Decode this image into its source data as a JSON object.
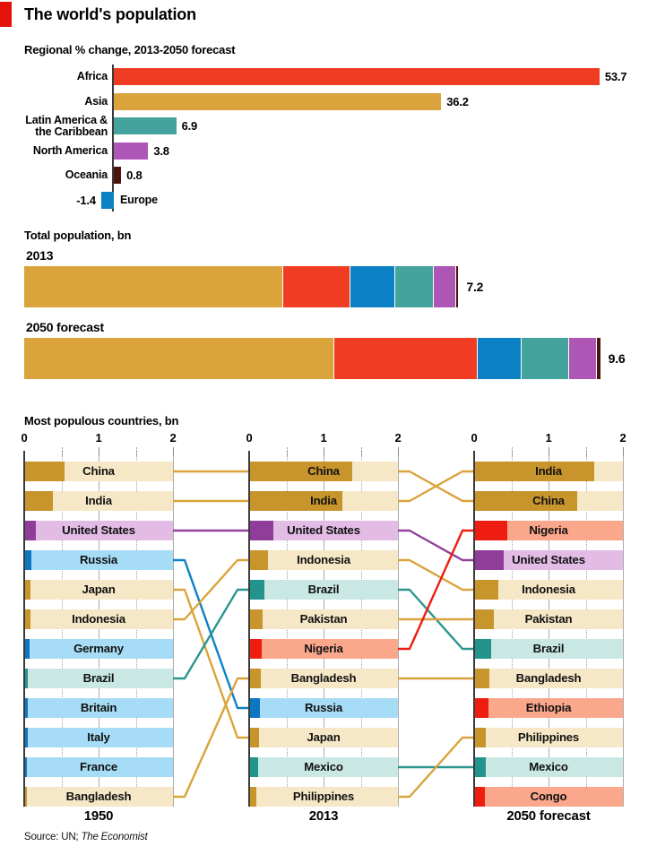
{
  "header": {
    "title": "The world's population"
  },
  "footer": {
    "source_prefix": "Source: UN; ",
    "source_publication": "The Economist"
  },
  "palette": {
    "brand_red": "#E3120B",
    "africa": "#F03C22",
    "asia": "#DBA33C",
    "europe": "#0C80C4",
    "latin_america": "#44A39C",
    "north_america": "#AE56B6",
    "oceania": "#4C120D",
    "asia_dark": "#C8942C",
    "asia_light": "#F6E8C6",
    "africa_dark": "#EE1D0F",
    "africa_light": "#FBA78C",
    "europe_dark": "#0E76C0",
    "europe_light": "#A6DCF5",
    "latin_america_dark": "#23948D",
    "latin_america_light": "#C9E8E3",
    "north_america_dark": "#8F3D99",
    "north_america_light": "#E3BCE6",
    "links": {
      "asia": "#D9A43C",
      "africa": "#EE1D0F",
      "europe": "#0C82C6",
      "latin_america": "#2A968F",
      "north_america": "#93409B"
    },
    "axis": "#3B3B3B",
    "grid": "#ACACAC",
    "grid_dotted": "#A0A0A0"
  },
  "chart_data": [
    {
      "id": "regional_change",
      "type": "bar",
      "orientation": "horizontal",
      "title": "Regional % change, 2013-2050 forecast",
      "categories": [
        "Africa",
        "Asia",
        "Latin America & the Caribbean",
        "North America",
        "Oceania",
        "Europe"
      ],
      "values": [
        53.7,
        36.2,
        6.9,
        3.8,
        0.8,
        -1.4
      ],
      "value_labels": [
        "53.7",
        "36.2",
        "6.9",
        "3.8",
        "0.8",
        "-1.4"
      ],
      "region_keys": [
        "africa",
        "asia",
        "latin_america",
        "north_america",
        "oceania",
        "europe"
      ],
      "xlim": [
        -1.4,
        53.7
      ],
      "grid": false,
      "legend": false
    },
    {
      "id": "total_population",
      "type": "bar",
      "subtype": "stacked",
      "title": "Total population, bn",
      "xmax": 9.6,
      "bars": [
        {
          "label": "2013",
          "total_label": "7.2",
          "total": 7.2,
          "segments": [
            {
              "region": "asia",
              "value": 4.31
            },
            {
              "region": "africa",
              "value": 1.11
            },
            {
              "region": "europe",
              "value": 0.74
            },
            {
              "region": "latin_america",
              "value": 0.62
            },
            {
              "region": "north_america",
              "value": 0.36
            },
            {
              "region": "oceania",
              "value": 0.04
            }
          ]
        },
        {
          "label": "2050 forecast",
          "total_label": "9.6",
          "total": 9.6,
          "segments": [
            {
              "region": "asia",
              "value": 5.16
            },
            {
              "region": "africa",
              "value": 2.39
            },
            {
              "region": "europe",
              "value": 0.71
            },
            {
              "region": "latin_america",
              "value": 0.78
            },
            {
              "region": "north_america",
              "value": 0.45
            },
            {
              "region": "oceania",
              "value": 0.06
            }
          ]
        }
      ]
    },
    {
      "id": "most_populous",
      "type": "bar",
      "subtype": "ranked-slope",
      "title": "Most populous countries, bn",
      "axis_ticks": [
        "0",
        "1",
        "2"
      ],
      "axis_range": [
        0,
        2
      ],
      "columns": [
        {
          "label": "1950",
          "rows": [
            {
              "country": "China",
              "value": 0.54,
              "region": "asia"
            },
            {
              "country": "India",
              "value": 0.38,
              "region": "asia"
            },
            {
              "country": "United States",
              "value": 0.16,
              "region": "north_america"
            },
            {
              "country": "Russia",
              "value": 0.1,
              "region": "europe"
            },
            {
              "country": "Japan",
              "value": 0.08,
              "region": "asia"
            },
            {
              "country": "Indonesia",
              "value": 0.08,
              "region": "asia"
            },
            {
              "country": "Germany",
              "value": 0.07,
              "region": "europe"
            },
            {
              "country": "Brazil",
              "value": 0.05,
              "region": "latin_america"
            },
            {
              "country": "Britain",
              "value": 0.05,
              "region": "europe"
            },
            {
              "country": "Italy",
              "value": 0.05,
              "region": "europe"
            },
            {
              "country": "France",
              "value": 0.04,
              "region": "europe"
            },
            {
              "country": "Bangladesh",
              "value": 0.04,
              "region": "asia"
            }
          ]
        },
        {
          "label": "2013",
          "rows": [
            {
              "country": "China",
              "value": 1.39,
              "region": "asia"
            },
            {
              "country": "India",
              "value": 1.25,
              "region": "asia"
            },
            {
              "country": "United States",
              "value": 0.32,
              "region": "north_america"
            },
            {
              "country": "Indonesia",
              "value": 0.25,
              "region": "asia"
            },
            {
              "country": "Brazil",
              "value": 0.2,
              "region": "latin_america"
            },
            {
              "country": "Pakistan",
              "value": 0.18,
              "region": "asia"
            },
            {
              "country": "Nigeria",
              "value": 0.17,
              "region": "africa"
            },
            {
              "country": "Bangladesh",
              "value": 0.16,
              "region": "asia"
            },
            {
              "country": "Russia",
              "value": 0.14,
              "region": "europe"
            },
            {
              "country": "Japan",
              "value": 0.13,
              "region": "asia"
            },
            {
              "country": "Mexico",
              "value": 0.12,
              "region": "latin_america"
            },
            {
              "country": "Philippines",
              "value": 0.1,
              "region": "asia"
            }
          ]
        },
        {
          "label": "2050 forecast",
          "rows": [
            {
              "country": "India",
              "value": 1.62,
              "region": "asia"
            },
            {
              "country": "China",
              "value": 1.38,
              "region": "asia"
            },
            {
              "country": "Nigeria",
              "value": 0.44,
              "region": "africa"
            },
            {
              "country": "United States",
              "value": 0.4,
              "region": "north_america"
            },
            {
              "country": "Indonesia",
              "value": 0.32,
              "region": "asia"
            },
            {
              "country": "Pakistan",
              "value": 0.27,
              "region": "asia"
            },
            {
              "country": "Brazil",
              "value": 0.23,
              "region": "latin_america"
            },
            {
              "country": "Bangladesh",
              "value": 0.2,
              "region": "asia"
            },
            {
              "country": "Ethiopia",
              "value": 0.19,
              "region": "africa"
            },
            {
              "country": "Philippines",
              "value": 0.16,
              "region": "asia"
            },
            {
              "country": "Mexico",
              "value": 0.16,
              "region": "latin_america"
            },
            {
              "country": "Congo",
              "value": 0.15,
              "region": "africa"
            }
          ]
        }
      ],
      "links": [
        {
          "country": "China",
          "region": "asia",
          "from_col": 0,
          "from_row": 0,
          "to_col": 1,
          "to_row": 0
        },
        {
          "country": "India",
          "region": "asia",
          "from_col": 0,
          "from_row": 1,
          "to_col": 1,
          "to_row": 1
        },
        {
          "country": "United States",
          "region": "north_america",
          "from_col": 0,
          "from_row": 2,
          "to_col": 1,
          "to_row": 2
        },
        {
          "country": "Russia",
          "region": "europe",
          "from_col": 0,
          "from_row": 3,
          "to_col": 1,
          "to_row": 8
        },
        {
          "country": "Japan",
          "region": "asia",
          "from_col": 0,
          "from_row": 4,
          "to_col": 1,
          "to_row": 9
        },
        {
          "country": "Indonesia",
          "region": "asia",
          "from_col": 0,
          "from_row": 5,
          "to_col": 1,
          "to_row": 3
        },
        {
          "country": "Brazil",
          "region": "latin_america",
          "from_col": 0,
          "from_row": 7,
          "to_col": 1,
          "to_row": 4
        },
        {
          "country": "Bangladesh",
          "region": "asia",
          "from_col": 0,
          "from_row": 11,
          "to_col": 1,
          "to_row": 7
        },
        {
          "country": "China",
          "region": "asia",
          "from_col": 1,
          "from_row": 0,
          "to_col": 2,
          "to_row": 1
        },
        {
          "country": "India",
          "region": "asia",
          "from_col": 1,
          "from_row": 1,
          "to_col": 2,
          "to_row": 0
        },
        {
          "country": "United States",
          "region": "north_america",
          "from_col": 1,
          "from_row": 2,
          "to_col": 2,
          "to_row": 3
        },
        {
          "country": "Indonesia",
          "region": "asia",
          "from_col": 1,
          "from_row": 3,
          "to_col": 2,
          "to_row": 4
        },
        {
          "country": "Brazil",
          "region": "latin_america",
          "from_col": 1,
          "from_row": 4,
          "to_col": 2,
          "to_row": 6
        },
        {
          "country": "Pakistan",
          "region": "asia",
          "from_col": 1,
          "from_row": 5,
          "to_col": 2,
          "to_row": 5
        },
        {
          "country": "Nigeria",
          "region": "africa",
          "from_col": 1,
          "from_row": 6,
          "to_col": 2,
          "to_row": 2
        },
        {
          "country": "Bangladesh",
          "region": "asia",
          "from_col": 1,
          "from_row": 7,
          "to_col": 2,
          "to_row": 7
        },
        {
          "country": "Mexico",
          "region": "latin_america",
          "from_col": 1,
          "from_row": 10,
          "to_col": 2,
          "to_row": 10
        },
        {
          "country": "Philippines",
          "region": "asia",
          "from_col": 1,
          "from_row": 11,
          "to_col": 2,
          "to_row": 9
        }
      ]
    }
  ]
}
